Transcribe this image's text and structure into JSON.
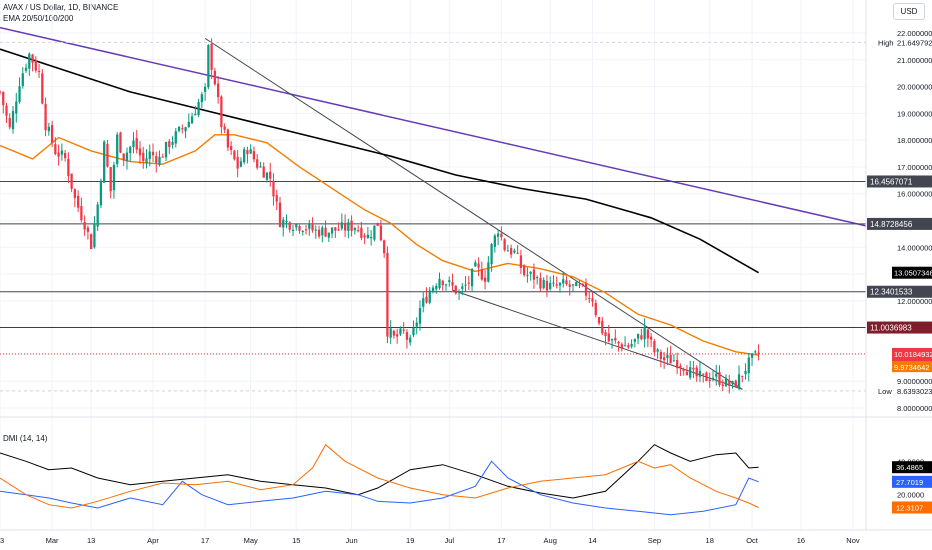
{
  "header": {
    "symbol_line": "AVAX / US Dollar, 1D, BINANCE",
    "ema_line": "EMA 20/50/100/200",
    "currency": "USD"
  },
  "colors": {
    "up": "#089981",
    "down": "#f23645",
    "ema_orange": "#f57c00",
    "ema_black": "#000000",
    "trend_purple": "#673ab7",
    "trend_gray": "#434651",
    "level_gray": "#434651",
    "level_maroon": "#7f1d2a",
    "dmi_black": "#000000",
    "dmi_blue": "#2962ff",
    "dmi_orange": "#ff6d00"
  },
  "chart_data": [
    {
      "type": "candlestick",
      "title": "AVAX / US Dollar, 1D, BINANCE",
      "y_axis": {
        "min": 8.0,
        "max": 22.0,
        "ticks": [
          "22.0000000",
          "21.0000000",
          "20.0000000",
          "19.0000000",
          "18.0000000",
          "17.0000000",
          "16.0000000",
          "15.0000000",
          "14.0000000",
          "13.0000000",
          "12.0000000",
          "11.0000000",
          "10.0000000",
          "9.0000000",
          "8.0000000"
        ]
      },
      "x_axis": {
        "ticks": [
          {
            "label": "13",
            "day": 0
          },
          {
            "label": "Mar",
            "day": 16
          },
          {
            "label": "13",
            "day": 28
          },
          {
            "label": "Apr",
            "day": 47
          },
          {
            "label": "17",
            "day": 63
          },
          {
            "label": "May",
            "day": 77
          },
          {
            "label": "15",
            "day": 91
          },
          {
            "label": "Jun",
            "day": 108
          },
          {
            "label": "19",
            "day": 126
          },
          {
            "label": "Jul",
            "day": 138
          },
          {
            "label": "17",
            "day": 154
          },
          {
            "label": "Aug",
            "day": 169
          },
          {
            "label": "14",
            "day": 182
          },
          {
            "label": "Sep",
            "day": 201
          },
          {
            "label": "18",
            "day": 218
          },
          {
            "label": "Oct",
            "day": 231
          },
          {
            "label": "16",
            "day": 246
          },
          {
            "label": "Nov",
            "day": 262
          }
        ]
      },
      "last_day": 233,
      "price_path": [
        [
          0,
          19.8
        ],
        [
          3,
          18.4
        ],
        [
          6,
          20.2
        ],
        [
          9,
          21.2
        ],
        [
          12,
          20.5
        ],
        [
          14,
          18.6
        ],
        [
          17,
          17.6
        ],
        [
          20,
          17.3
        ],
        [
          23,
          15.8
        ],
        [
          26,
          14.9
        ],
        [
          28,
          14.1
        ],
        [
          30,
          15.6
        ],
        [
          32,
          17.8
        ],
        [
          34,
          16.1
        ],
        [
          36,
          18.1
        ],
        [
          38,
          17.4
        ],
        [
          41,
          17.9
        ],
        [
          44,
          17.2
        ],
        [
          46,
          17.5
        ],
        [
          49,
          17.3
        ],
        [
          52,
          17.9
        ],
        [
          55,
          18.3
        ],
        [
          58,
          18.7
        ],
        [
          61,
          19.4
        ],
        [
          63,
          19.8
        ],
        [
          64,
          21.4
        ],
        [
          66,
          20.2
        ],
        [
          68,
          18.6
        ],
        [
          70,
          17.7
        ],
        [
          73,
          17.0
        ],
        [
          76,
          17.7
        ],
        [
          79,
          17.1
        ],
        [
          83,
          16.6
        ],
        [
          86,
          15.0
        ],
        [
          89,
          14.9
        ],
        [
          93,
          14.8
        ],
        [
          97,
          14.6
        ],
        [
          101,
          14.6
        ],
        [
          105,
          14.7
        ],
        [
          109,
          14.8
        ],
        [
          113,
          14.4
        ],
        [
          116,
          14.9
        ],
        [
          118,
          13.9
        ],
        [
          119,
          10.9
        ],
        [
          121,
          10.6
        ],
        [
          124,
          10.8
        ],
        [
          126,
          10.4
        ],
        [
          129,
          11.7
        ],
        [
          132,
          12.4
        ],
        [
          135,
          12.9
        ],
        [
          138,
          12.6
        ],
        [
          141,
          12.3
        ],
        [
          144,
          12.7
        ],
        [
          146,
          13.2
        ],
        [
          149,
          12.9
        ],
        [
          151,
          14.0
        ],
        [
          153,
          14.7
        ],
        [
          155,
          14.0
        ],
        [
          158,
          13.8
        ],
        [
          161,
          13.0
        ],
        [
          164,
          12.9
        ],
        [
          167,
          12.6
        ],
        [
          170,
          12.5
        ],
        [
          173,
          12.6
        ],
        [
          176,
          12.5
        ],
        [
          179,
          12.4
        ],
        [
          182,
          12.1
        ],
        [
          184,
          11.1
        ],
        [
          187,
          10.5
        ],
        [
          190,
          10.4
        ],
        [
          193,
          10.3
        ],
        [
          196,
          10.6
        ],
        [
          198,
          10.9
        ],
        [
          201,
          10.1
        ],
        [
          204,
          9.8
        ],
        [
          207,
          9.8
        ],
        [
          210,
          9.6
        ],
        [
          213,
          9.2
        ],
        [
          216,
          9.1
        ],
        [
          219,
          9.2
        ],
        [
          222,
          9.0
        ],
        [
          225,
          8.8
        ],
        [
          227,
          9.1
        ],
        [
          229,
          9.5
        ],
        [
          231,
          9.8
        ],
        [
          233,
          10.02
        ]
      ],
      "ema_200": [
        [
          0,
          21.4
        ],
        [
          20,
          20.6
        ],
        [
          40,
          19.8
        ],
        [
          60,
          19.2
        ],
        [
          80,
          18.6
        ],
        [
          100,
          18.0
        ],
        [
          120,
          17.4
        ],
        [
          140,
          16.7
        ],
        [
          160,
          16.2
        ],
        [
          180,
          15.8
        ],
        [
          200,
          15.1
        ],
        [
          215,
          14.3
        ],
        [
          233,
          13.05
        ]
      ],
      "ema_20": [
        [
          0,
          17.8
        ],
        [
          10,
          17.3
        ],
        [
          18,
          18.1
        ],
        [
          28,
          17.6
        ],
        [
          40,
          17.2
        ],
        [
          50,
          17.1
        ],
        [
          60,
          17.6
        ],
        [
          66,
          18.2
        ],
        [
          72,
          18.2
        ],
        [
          82,
          17.9
        ],
        [
          92,
          17.0
        ],
        [
          102,
          16.2
        ],
        [
          112,
          15.4
        ],
        [
          120,
          14.9
        ],
        [
          128,
          14.1
        ],
        [
          136,
          13.5
        ],
        [
          146,
          13.1
        ],
        [
          156,
          13.4
        ],
        [
          166,
          13.2
        ],
        [
          176,
          12.9
        ],
        [
          186,
          12.3
        ],
        [
          196,
          11.5
        ],
        [
          206,
          11.1
        ],
        [
          216,
          10.5
        ],
        [
          226,
          10.1
        ],
        [
          233,
          9.97
        ]
      ],
      "levels": [
        {
          "price": 16.4567071,
          "label": "16.4567071",
          "style": "gray"
        },
        {
          "price": 14.8728456,
          "label": "14.8728456",
          "style": "gray"
        },
        {
          "price": 12.3401533,
          "label": "12.3401533",
          "style": "gray"
        },
        {
          "price": 11.0036983,
          "label": "11.0036983",
          "style": "maroon"
        }
      ],
      "price_tags": {
        "high": {
          "price": 21.6497926,
          "caption": "High",
          "value": "21.6497926"
        },
        "low": {
          "price": 8.6393023,
          "caption": "Low",
          "value": "8.6393023"
        },
        "last": {
          "price": 10.0184932,
          "value": "10.0184932",
          "countdown": "15:46:44"
        },
        "ema": {
          "price": 9.9734642,
          "value": "9.9734642"
        },
        "ema200_tag": {
          "price": 13.0507346,
          "value": "13.0507346"
        }
      },
      "trendlines": [
        {
          "from": [
            0,
            22.2
          ],
          "to": [
            266,
            14.8
          ],
          "style": "purple"
        },
        {
          "from": [
            63,
            21.8
          ],
          "to": [
            228,
            8.7
          ],
          "style": "gray"
        },
        {
          "from": [
            139,
            12.4
          ],
          "to": [
            228,
            8.7
          ],
          "style": "gray"
        }
      ]
    },
    {
      "type": "line",
      "title": "DMI (14, 14)",
      "y_axis": {
        "min": 0,
        "max": 60,
        "ticks": [
          "40.0000",
          "20.0000"
        ]
      },
      "series": [
        {
          "color": "#000000",
          "tag": "36.4865",
          "values": [
            [
              0,
              45
            ],
            [
              8,
              40
            ],
            [
              15,
              35
            ],
            [
              22,
              36
            ],
            [
              30,
              30
            ],
            [
              40,
              26
            ],
            [
              50,
              28
            ],
            [
              60,
              30
            ],
            [
              70,
              32
            ],
            [
              80,
              28
            ],
            [
              90,
              26
            ],
            [
              100,
              24
            ],
            [
              110,
              20
            ],
            [
              116,
              24
            ],
            [
              126,
              35
            ],
            [
              136,
              38
            ],
            [
              146,
              32
            ],
            [
              156,
              25
            ],
            [
              166,
              21
            ],
            [
              176,
              18
            ],
            [
              186,
              22
            ],
            [
              196,
              40
            ],
            [
              201,
              50
            ],
            [
              206,
              45
            ],
            [
              212,
              40
            ],
            [
              220,
              44
            ],
            [
              226,
              45
            ],
            [
              230,
              36
            ],
            [
              233,
              36.5
            ]
          ]
        },
        {
          "color": "#2962ff",
          "tag": "27.7019",
          "values": [
            [
              0,
              22
            ],
            [
              8,
              20
            ],
            [
              15,
              18
            ],
            [
              22,
              15
            ],
            [
              30,
              12
            ],
            [
              40,
              18
            ],
            [
              50,
              14
            ],
            [
              56,
              28
            ],
            [
              62,
              20
            ],
            [
              70,
              14
            ],
            [
              80,
              16
            ],
            [
              90,
              18
            ],
            [
              100,
              22
            ],
            [
              110,
              20
            ],
            [
              116,
              16
            ],
            [
              126,
              15
            ],
            [
              136,
              18
            ],
            [
              146,
              25
            ],
            [
              151,
              40
            ],
            [
              156,
              30
            ],
            [
              166,
              20
            ],
            [
              176,
              15
            ],
            [
              186,
              12
            ],
            [
              196,
              10
            ],
            [
              206,
              8
            ],
            [
              216,
              10
            ],
            [
              226,
              14
            ],
            [
              230,
              30
            ],
            [
              233,
              27.7
            ]
          ]
        },
        {
          "color": "#ff6d00",
          "tag": "12.3107",
          "values": [
            [
              0,
              30
            ],
            [
              8,
              20
            ],
            [
              15,
              14
            ],
            [
              22,
              12
            ],
            [
              30,
              16
            ],
            [
              40,
              22
            ],
            [
              50,
              27
            ],
            [
              60,
              26
            ],
            [
              70,
              28
            ],
            [
              80,
              23
            ],
            [
              90,
              26
            ],
            [
              96,
              36
            ],
            [
              100,
              50
            ],
            [
              106,
              40
            ],
            [
              116,
              30
            ],
            [
              126,
              24
            ],
            [
              136,
              20
            ],
            [
              146,
              18
            ],
            [
              156,
              24
            ],
            [
              166,
              28
            ],
            [
              176,
              30
            ],
            [
              186,
              32
            ],
            [
              196,
              40
            ],
            [
              201,
              36
            ],
            [
              206,
              38
            ],
            [
              212,
              30
            ],
            [
              220,
              22
            ],
            [
              226,
              18
            ],
            [
              230,
              15
            ],
            [
              233,
              12.3
            ]
          ]
        }
      ]
    }
  ]
}
